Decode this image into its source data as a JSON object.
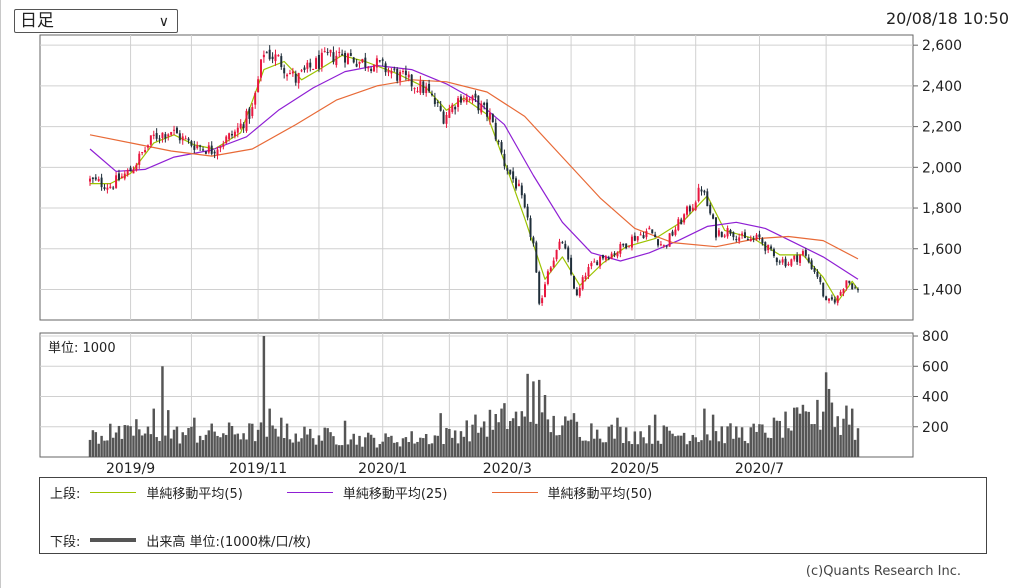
{
  "period_select": {
    "value": "日足"
  },
  "timestamp": "20/08/18 10:50",
  "chart_data": [
    {
      "type": "candlestick",
      "title": "",
      "y_ticks": [
        1400,
        1600,
        1800,
        2000,
        2200,
        2400,
        2600
      ],
      "y_tick_labels": [
        "1,400",
        "1,600",
        "1,800",
        "2,000",
        "2,200",
        "2,400",
        "2,600"
      ],
      "ylim": [
        1250,
        2650
      ],
      "x_ticks": [
        "2019/9",
        "2019/11",
        "2020/1",
        "2020/3",
        "2020/5",
        "2020/7"
      ],
      "up_color": "#e8173f",
      "down_color": "#1f2e3a",
      "price_anchors": [
        [
          "2019-08-13",
          1935
        ],
        [
          "2019-08-22",
          1910
        ],
        [
          "2019-09-02",
          1985
        ],
        [
          "2019-09-12",
          2150
        ],
        [
          "2019-09-20",
          2180
        ],
        [
          "2019-09-30",
          2120
        ],
        [
          "2019-10-10",
          2085
        ],
        [
          "2019-10-22",
          2170
        ],
        [
          "2019-10-30",
          2280
        ],
        [
          "2019-11-05",
          2570
        ],
        [
          "2019-11-12",
          2530
        ],
        [
          "2019-11-20",
          2430
        ],
        [
          "2019-11-28",
          2500
        ],
        [
          "2019-12-05",
          2540
        ],
        [
          "2019-12-12",
          2560
        ],
        [
          "2019-12-20",
          2520
        ],
        [
          "2019-12-27",
          2510
        ],
        [
          "2020-01-06",
          2470
        ],
        [
          "2020-01-14",
          2420
        ],
        [
          "2020-01-22",
          2380
        ],
        [
          "2020-01-30",
          2250
        ],
        [
          "2020-02-07",
          2350
        ],
        [
          "2020-02-14",
          2320
        ],
        [
          "2020-02-21",
          2250
        ],
        [
          "2020-02-28",
          2020
        ],
        [
          "2020-03-06",
          1890
        ],
        [
          "2020-03-13",
          1620
        ],
        [
          "2020-03-17",
          1310
        ],
        [
          "2020-03-20",
          1500
        ],
        [
          "2020-03-27",
          1640
        ],
        [
          "2020-04-03",
          1360
        ],
        [
          "2020-04-08",
          1480
        ],
        [
          "2020-04-15",
          1560
        ],
        [
          "2020-04-22",
          1580
        ],
        [
          "2020-04-30",
          1650
        ],
        [
          "2020-05-08",
          1690
        ],
        [
          "2020-05-15",
          1610
        ],
        [
          "2020-05-22",
          1720
        ],
        [
          "2020-05-29",
          1820
        ],
        [
          "2020-06-03",
          1900
        ],
        [
          "2020-06-10",
          1680
        ],
        [
          "2020-06-17",
          1690
        ],
        [
          "2020-06-24",
          1640
        ],
        [
          "2020-07-01",
          1650
        ],
        [
          "2020-07-08",
          1560
        ],
        [
          "2020-07-15",
          1530
        ],
        [
          "2020-07-22",
          1580
        ],
        [
          "2020-07-29",
          1470
        ],
        [
          "2020-08-03",
          1330
        ],
        [
          "2020-08-07",
          1360
        ],
        [
          "2020-08-12",
          1450
        ],
        [
          "2020-08-18",
          1390
        ]
      ],
      "moving_averages": [
        {
          "name": "単純移動平均(5)",
          "color": "#9cc300",
          "points": [
            [
              "2019-08-13",
              1920
            ],
            [
              "2019-08-22",
              1920
            ],
            [
              "2019-09-02",
              1970
            ],
            [
              "2019-09-12",
              2120
            ],
            [
              "2019-09-22",
              2160
            ],
            [
              "2019-10-02",
              2110
            ],
            [
              "2019-10-12",
              2090
            ],
            [
              "2019-10-24",
              2170
            ],
            [
              "2019-11-05",
              2480
            ],
            [
              "2019-11-14",
              2520
            ],
            [
              "2019-11-22",
              2430
            ],
            [
              "2019-12-02",
              2480
            ],
            [
              "2019-12-12",
              2550
            ],
            [
              "2019-12-24",
              2520
            ],
            [
              "2020-01-08",
              2460
            ],
            [
              "2020-01-22",
              2390
            ],
            [
              "2020-01-31",
              2280
            ],
            [
              "2020-02-10",
              2340
            ],
            [
              "2020-02-20",
              2260
            ],
            [
              "2020-03-02",
              1990
            ],
            [
              "2020-03-10",
              1750
            ],
            [
              "2020-03-19",
              1450
            ],
            [
              "2020-03-27",
              1560
            ],
            [
              "2020-04-06",
              1420
            ],
            [
              "2020-04-16",
              1530
            ],
            [
              "2020-04-28",
              1610
            ],
            [
              "2020-05-12",
              1650
            ],
            [
              "2020-05-26",
              1740
            ],
            [
              "2020-06-05",
              1860
            ],
            [
              "2020-06-15",
              1690
            ],
            [
              "2020-06-29",
              1650
            ],
            [
              "2020-07-10",
              1570
            ],
            [
              "2020-07-22",
              1570
            ],
            [
              "2020-07-31",
              1460
            ],
            [
              "2020-08-07",
              1340
            ],
            [
              "2020-08-14",
              1440
            ],
            [
              "2020-08-18",
              1400
            ]
          ]
        },
        {
          "name": "単純移動平均(25)",
          "color": "#8f1fd4",
          "points": [
            [
              "2019-08-13",
              2090
            ],
            [
              "2019-08-25",
              1980
            ],
            [
              "2019-09-08",
              1990
            ],
            [
              "2019-09-22",
              2050
            ],
            [
              "2019-10-10",
              2085
            ],
            [
              "2019-10-28",
              2150
            ],
            [
              "2019-11-12",
              2280
            ],
            [
              "2019-11-28",
              2390
            ],
            [
              "2019-12-14",
              2470
            ],
            [
              "2019-12-30",
              2500
            ],
            [
              "2020-01-15",
              2480
            ],
            [
              "2020-01-31",
              2410
            ],
            [
              "2020-02-14",
              2330
            ],
            [
              "2020-02-28",
              2210
            ],
            [
              "2020-03-13",
              1960
            ],
            [
              "2020-03-27",
              1730
            ],
            [
              "2020-04-10",
              1580
            ],
            [
              "2020-04-24",
              1540
            ],
            [
              "2020-05-08",
              1580
            ],
            [
              "2020-05-22",
              1640
            ],
            [
              "2020-06-05",
              1710
            ],
            [
              "2020-06-19",
              1730
            ],
            [
              "2020-07-03",
              1700
            ],
            [
              "2020-07-17",
              1630
            ],
            [
              "2020-07-31",
              1560
            ],
            [
              "2020-08-18",
              1450
            ]
          ]
        },
        {
          "name": "単純移動平均(50)",
          "color": "#e86a37",
          "points": [
            [
              "2019-08-13",
              2160
            ],
            [
              "2019-09-01",
              2120
            ],
            [
              "2019-09-20",
              2080
            ],
            [
              "2019-10-10",
              2055
            ],
            [
              "2019-10-30",
              2090
            ],
            [
              "2019-11-20",
              2210
            ],
            [
              "2019-12-10",
              2330
            ],
            [
              "2019-12-30",
              2400
            ],
            [
              "2020-01-15",
              2430
            ],
            [
              "2020-01-31",
              2420
            ],
            [
              "2020-02-20",
              2370
            ],
            [
              "2020-03-10",
              2250
            ],
            [
              "2020-03-27",
              2050
            ],
            [
              "2020-04-15",
              1850
            ],
            [
              "2020-05-01",
              1700
            ],
            [
              "2020-05-20",
              1630
            ],
            [
              "2020-06-10",
              1610
            ],
            [
              "2020-06-30",
              1650
            ],
            [
              "2020-07-15",
              1660
            ],
            [
              "2020-07-31",
              1640
            ],
            [
              "2020-08-18",
              1550
            ]
          ]
        }
      ]
    },
    {
      "type": "bar",
      "title": "単位: 1000",
      "y_ticks": [
        200,
        400,
        600,
        800
      ],
      "y_tick_labels": [
        "200",
        "400",
        "600",
        "800"
      ],
      "ylim": [
        0,
        820
      ],
      "color": "#555555",
      "x_ticks": [
        "2019/9",
        "2019/11",
        "2020/1",
        "2020/3",
        "2020/5",
        "2020/7"
      ],
      "volume_baseline": [
        [
          "2019-08-13",
          140
        ],
        [
          "2019-09-01",
          150
        ],
        [
          "2019-10-01",
          150
        ],
        [
          "2019-11-01",
          170
        ],
        [
          "2019-12-01",
          140
        ],
        [
          "2020-01-01",
          110
        ],
        [
          "2020-02-01",
          140
        ],
        [
          "2020-03-01",
          260
        ],
        [
          "2020-04-01",
          190
        ],
        [
          "2020-05-01",
          150
        ],
        [
          "2020-06-01",
          150
        ],
        [
          "2020-07-01",
          160
        ],
        [
          "2020-08-01",
          280
        ],
        [
          "2020-08-18",
          170
        ]
      ],
      "volume_spikes": [
        [
          "2019-08-22",
          220
        ],
        [
          "2019-09-04",
          250
        ],
        [
          "2019-09-12",
          320
        ],
        [
          "2019-09-17",
          600
        ],
        [
          "2019-09-19",
          310
        ],
        [
          "2019-10-02",
          260
        ],
        [
          "2019-10-30",
          220
        ],
        [
          "2019-11-05",
          800
        ],
        [
          "2019-11-07",
          320
        ],
        [
          "2019-11-13",
          260
        ],
        [
          "2019-12-13",
          240
        ],
        [
          "2020-01-29",
          290
        ],
        [
          "2020-02-26",
          230
        ],
        [
          "2020-03-05",
          300
        ],
        [
          "2020-03-11",
          550
        ],
        [
          "2020-03-13",
          500
        ],
        [
          "2020-03-17",
          510
        ],
        [
          "2020-03-19",
          410
        ],
        [
          "2020-04-02",
          290
        ],
        [
          "2020-04-23",
          260
        ],
        [
          "2020-05-12",
          280
        ],
        [
          "2020-06-04",
          320
        ],
        [
          "2020-06-09",
          280
        ],
        [
          "2020-07-09",
          240
        ],
        [
          "2020-07-31",
          300
        ],
        [
          "2020-08-03",
          560
        ],
        [
          "2020-08-04",
          450
        ],
        [
          "2020-08-05",
          360
        ],
        [
          "2020-08-12",
          340
        ],
        [
          "2020-08-14",
          320
        ]
      ]
    }
  ],
  "legend": {
    "upper_label": "上段:",
    "lower_label": "下段:",
    "items": [
      {
        "label": "単純移動平均(5)",
        "color": "#9cc300"
      },
      {
        "label": "単純移動平均(25)",
        "color": "#8f1fd4"
      },
      {
        "label": "単純移動平均(50)",
        "color": "#e86a37"
      }
    ],
    "volume_label": "出来高 単位:(1000株/口/枚)"
  },
  "copyright": "(c)Quants Research Inc."
}
